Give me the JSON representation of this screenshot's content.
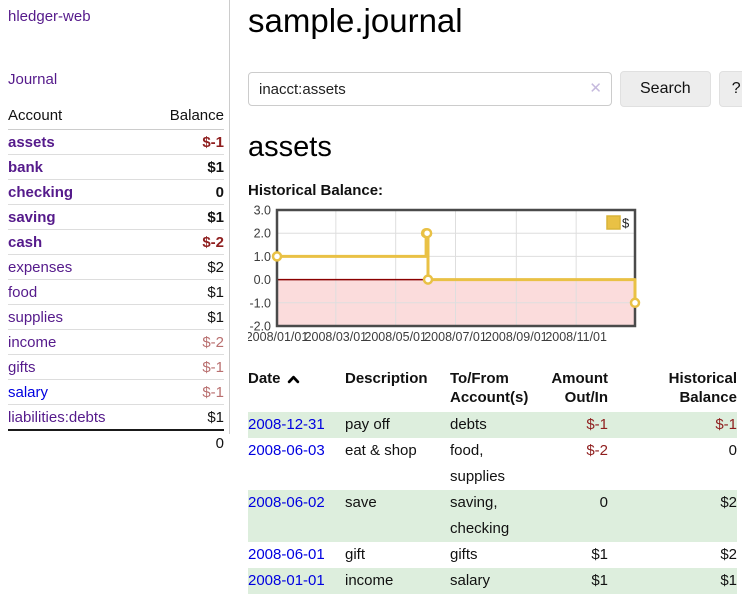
{
  "app": {
    "brand": "hledger-web",
    "nav_journal": "Journal"
  },
  "sidebar": {
    "columns": {
      "account": "Account",
      "balance": "Balance"
    },
    "accounts": [
      {
        "name": "assets",
        "depth": 1,
        "balance": "$-1",
        "bold": true,
        "balance_tone": "negative",
        "link_tone": "visited"
      },
      {
        "name": "bank",
        "depth": 2,
        "balance": "$1",
        "bold": true,
        "balance_tone": "normal",
        "link_tone": "visited"
      },
      {
        "name": "checking",
        "depth": 3,
        "balance": "0",
        "bold": true,
        "balance_tone": "normal",
        "link_tone": "visited"
      },
      {
        "name": "saving",
        "depth": 3,
        "balance": "$1",
        "bold": true,
        "balance_tone": "normal",
        "link_tone": "visited"
      },
      {
        "name": "cash",
        "depth": 2,
        "balance": "$-2",
        "bold": true,
        "balance_tone": "negative",
        "link_tone": "visited"
      },
      {
        "name": "expenses",
        "depth": 1,
        "balance": "$2",
        "bold": false,
        "balance_tone": "normal",
        "link_tone": "visited"
      },
      {
        "name": "food",
        "depth": 2,
        "balance": "$1",
        "bold": false,
        "balance_tone": "normal",
        "link_tone": "visited"
      },
      {
        "name": "supplies",
        "depth": 2,
        "balance": "$1",
        "bold": false,
        "balance_tone": "normal",
        "link_tone": "visited"
      },
      {
        "name": "income",
        "depth": 1,
        "balance": "$-2",
        "bold": false,
        "balance_tone": "negative-muted",
        "link_tone": "visited"
      },
      {
        "name": "gifts",
        "depth": 2,
        "balance": "$-1",
        "bold": false,
        "balance_tone": "negative-muted",
        "link_tone": "visited"
      },
      {
        "name": "salary",
        "depth": 2,
        "balance": "$-1",
        "bold": false,
        "balance_tone": "negative-muted",
        "link_tone": "unvisited"
      },
      {
        "name": "liabilities:debts",
        "depth": 1,
        "balance": "$1",
        "bold": false,
        "balance_tone": "normal",
        "link_tone": "visited"
      }
    ],
    "total": "0"
  },
  "header": {
    "title": "sample.journal"
  },
  "search": {
    "value": "inacct:assets",
    "clear_icon": "✕",
    "button_label": "Search",
    "help_label": "?"
  },
  "account_page": {
    "title": "assets",
    "chart_label": "Historical Balance:"
  },
  "chart_data": {
    "type": "line",
    "step": true,
    "title": "Historical Balance:",
    "series": [
      {
        "name": "$",
        "points": [
          [
            "2008-01-01",
            1
          ],
          [
            "2008-06-01",
            2
          ],
          [
            "2008-06-02",
            2
          ],
          [
            "2008-06-03",
            0
          ],
          [
            "2008-12-31",
            -1
          ]
        ]
      }
    ],
    "x_domain": [
      "2008-01-01",
      "2008-12-31"
    ],
    "ylim": [
      -2,
      3
    ],
    "y_ticks": [
      "3.0",
      "2.0",
      "1.0",
      "0.0",
      "-1.0",
      "-2.0"
    ],
    "x_ticks": [
      "2008/01/01",
      "2008/03/01",
      "2008/05/01",
      "2008/07/01",
      "2008/09/01",
      "2008/11/01"
    ],
    "grid": true,
    "zero_line": 0,
    "negative_region_below": 0,
    "legend_position": "top-right",
    "legend_label": "$"
  },
  "register": {
    "headers": {
      "date": "Date",
      "sort_icon": "chevron-up",
      "description": "Description",
      "tofrom_line1": "To/From",
      "tofrom_line2": "Account(s)",
      "amount_line1": "Amount",
      "amount_line2": "Out/In",
      "balance_line1": "Historical",
      "balance_line2": "Balance"
    },
    "rows": [
      {
        "date": "2008-12-31",
        "description": "pay off",
        "accounts": [
          "debts"
        ],
        "amount": "$-1",
        "amount_tone": "negative",
        "balance": "$-1",
        "balance_tone": "negative"
      },
      {
        "date": "2008-06-03",
        "description": "eat & shop",
        "accounts": [
          "food, supplies"
        ],
        "amount": "$-2",
        "amount_tone": "negative",
        "balance": "0",
        "balance_tone": "normal"
      },
      {
        "date": "2008-06-02",
        "description": "save",
        "accounts": [
          "saving,",
          "checking"
        ],
        "amount": "0",
        "amount_tone": "normal",
        "balance": "$2",
        "balance_tone": "normal"
      },
      {
        "date": "2008-06-01",
        "description": "gift",
        "accounts": [
          "gifts"
        ],
        "amount": "$1",
        "amount_tone": "normal",
        "balance": "$2",
        "balance_tone": "normal"
      },
      {
        "date": "2008-01-01",
        "description": "income",
        "accounts": [
          "salary"
        ],
        "amount": "$1",
        "amount_tone": "normal",
        "balance": "$1",
        "balance_tone": "normal"
      }
    ]
  },
  "colors": {
    "link_visited": "#551a8b",
    "link_unvisited": "#0000e0",
    "negative_strong": "#8f1e1e",
    "negative_muted": "#b96f6f",
    "row_green": "#ddeedd",
    "chart_line": "#e9c145",
    "chart_marker_fill": "#ffffff",
    "chart_negative_region": "#fbdcdc",
    "chart_zero_line": "#8b0000",
    "chart_border": "#4a4a4a",
    "chart_grid": "#dedede",
    "button_bg": "#ededed"
  }
}
